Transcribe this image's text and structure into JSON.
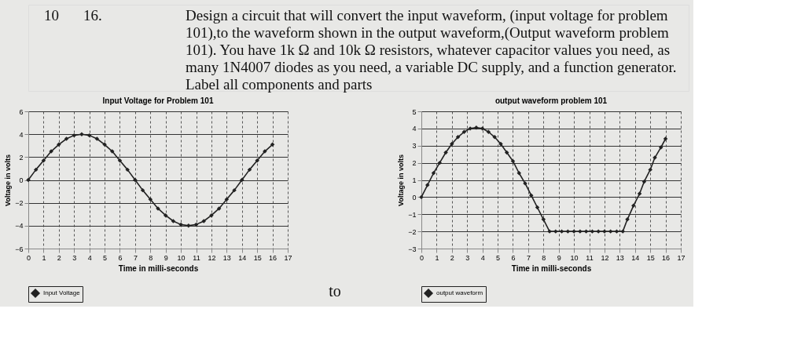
{
  "chart_data": [
    {
      "type": "other",
      "annotations": [
        "10",
        "16.",
        "Design a circuit that will convert the input waveform, (input voltage for problem",
        "101),to the waveform shown in the output waveform,(Output waveform problem",
        "101).  You have 1k Ω and 10k Ω resistors,  whatever capacitor values you need, as",
        "many 1N4007 diodes as you need, a variable DC supply, and a function generator.",
        "Label all components and parts"
      ]
    },
    {
      "type": "line",
      "title": "Input Voltage for Problem 101",
      "xlabel": "Time in milli-seconds",
      "ylabel": "Voltage in volts",
      "xlim": [
        0,
        17
      ],
      "xticks": [
        0,
        1,
        2,
        3,
        4,
        5,
        6,
        7,
        8,
        9,
        10,
        11,
        12,
        13,
        14,
        15,
        16,
        17
      ],
      "ylim": [
        -6,
        6
      ],
      "yticks": [
        -6,
        -4,
        -2,
        0,
        2,
        4,
        6
      ],
      "grid": true,
      "legend": "bottom",
      "marker": "diamond",
      "line_style": "solid",
      "annotations": [
        "to"
      ],
      "series": [
        {
          "name": "Input Voltage",
          "color": "#222222",
          "x": [
            0,
            0.5,
            1,
            1.5,
            2,
            2.5,
            3,
            3.5,
            4,
            4.5,
            5,
            5.5,
            6,
            6.5,
            7,
            7.5,
            8,
            8.5,
            9,
            9.5,
            10,
            10.5,
            11,
            11.5,
            12,
            12.5,
            13,
            13.5,
            14,
            14.5,
            15,
            15.5,
            16
          ],
          "values": [
            0,
            0.9,
            1.7,
            2.5,
            3.1,
            3.6,
            3.9,
            4.0,
            3.9,
            3.6,
            3.1,
            2.5,
            1.7,
            0.9,
            0,
            -0.9,
            -1.7,
            -2.5,
            -3.1,
            -3.6,
            -3.9,
            -4.0,
            -3.9,
            -3.6,
            -3.1,
            -2.5,
            -1.7,
            -0.9,
            0,
            0.9,
            1.7,
            2.5,
            3.1
          ]
        }
      ]
    },
    {
      "type": "line",
      "title": "output waveform problem 101",
      "xlabel": "Time in milli-seconds",
      "ylabel": "Voltage in volts",
      "xlim": [
        0,
        17
      ],
      "xticks": [
        0,
        1,
        2,
        3,
        4,
        5,
        6,
        7,
        8,
        9,
        10,
        11,
        12,
        13,
        14,
        15,
        16,
        17
      ],
      "ylim": [
        -3,
        5
      ],
      "yticks": [
        -3,
        -2,
        -1,
        0,
        1,
        2,
        3,
        4,
        5
      ],
      "grid": true,
      "legend": "bottom",
      "marker": "diamond",
      "line_style": "solid",
      "series": [
        {
          "name": "output waveform",
          "color": "#222222",
          "x": [
            0,
            0.4,
            0.8,
            1.2,
            1.6,
            2,
            2.4,
            2.8,
            3.2,
            3.6,
            4,
            4.4,
            4.8,
            5.2,
            5.6,
            6,
            6.4,
            6.8,
            7.2,
            7.6,
            8,
            8.4,
            8.8,
            9.2,
            9.6,
            10,
            10.4,
            10.8,
            11.2,
            11.6,
            12,
            12.4,
            12.8,
            13.2,
            13.5,
            13.9,
            14.3,
            14.6,
            15,
            15.3,
            15.7,
            16
          ],
          "values": [
            0,
            0.7,
            1.4,
            2.0,
            2.6,
            3.1,
            3.5,
            3.8,
            4.0,
            4.05,
            4.0,
            3.8,
            3.5,
            3.1,
            2.6,
            2.1,
            1.4,
            0.8,
            0.1,
            -0.6,
            -1.3,
            -2,
            -2,
            -2,
            -2,
            -2,
            -2,
            -2,
            -2,
            -2,
            -2,
            -2,
            -2,
            -2,
            -1.3,
            -0.5,
            0.2,
            0.9,
            1.6,
            2.3,
            2.9,
            3.4
          ]
        }
      ]
    }
  ]
}
